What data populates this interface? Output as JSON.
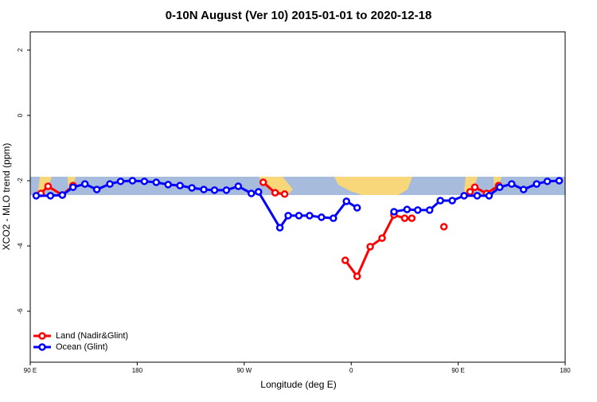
{
  "chart_data": {
    "type": "line",
    "title": "0-10N August (Ver 10)   2015-01-01 to 2020-12-18",
    "x_label": "Longitude (deg E)",
    "y_label": "XCO2 - MLO trend (ppm)",
    "xlim": [
      90,
      540
    ],
    "xticks": [
      {
        "value": 90,
        "label": "90 E"
      },
      180,
      {
        "value": 270,
        "label": "90 W"
      },
      {
        "value": 360,
        "label": "0"
      },
      {
        "value": 450,
        "label": "90 E"
      },
      {
        "value": 540,
        "label": "180"
      }
    ],
    "ylim": [
      -7.56,
      2.56
    ],
    "yticks": [
      -6,
      -4,
      -2,
      0,
      2
    ],
    "legend": "bottom-left",
    "series": [
      {
        "name": "Land (Nadir&Glint)",
        "color": "#ff0000",
        "x": [
          99,
          105,
          117,
          126,
          200,
          286,
          296,
          304,
          330,
          355,
          365,
          376,
          386,
          396,
          405,
          411,
          425,
          438,
          450,
          460,
          464,
          474,
          484
        ],
        "values": [
          -2.39,
          -2.17,
          -2.44,
          -2.15,
          null,
          -2.05,
          -2.37,
          -2.41,
          null,
          -4.44,
          -4.93,
          -4.02,
          -3.76,
          -3.05,
          -3.15,
          -3.15,
          null,
          -3.41,
          null,
          -2.34,
          -2.2,
          -2.39,
          -2.15
        ]
      },
      {
        "name": "Ocean (Glint)",
        "color": "#0000ff",
        "x": [
          95,
          107,
          117,
          126,
          136,
          146,
          157,
          166,
          176,
          186,
          196,
          206,
          216,
          226,
          236,
          245,
          255,
          265,
          276,
          282,
          300,
          307,
          316,
          325,
          335,
          345,
          356,
          365,
          380,
          396,
          407,
          416,
          426,
          435,
          445,
          455,
          466,
          476,
          485,
          495,
          505,
          516,
          525,
          535
        ],
        "values": [
          -2.46,
          -2.46,
          -2.44,
          -2.2,
          -2.1,
          -2.27,
          -2.1,
          -2.02,
          -2.0,
          -2.02,
          -2.05,
          -2.12,
          -2.15,
          -2.22,
          -2.27,
          -2.29,
          -2.29,
          -2.17,
          -2.39,
          -2.34,
          -3.44,
          -3.07,
          -3.07,
          -3.07,
          -3.12,
          -3.15,
          -2.63,
          -2.83,
          null,
          -2.95,
          -2.88,
          -2.9,
          -2.9,
          -2.61,
          -2.61,
          -2.46,
          -2.46,
          -2.46,
          -2.2,
          -2.1,
          -2.27,
          -2.1,
          -2.02,
          -2.0
        ]
      }
    ]
  }
}
